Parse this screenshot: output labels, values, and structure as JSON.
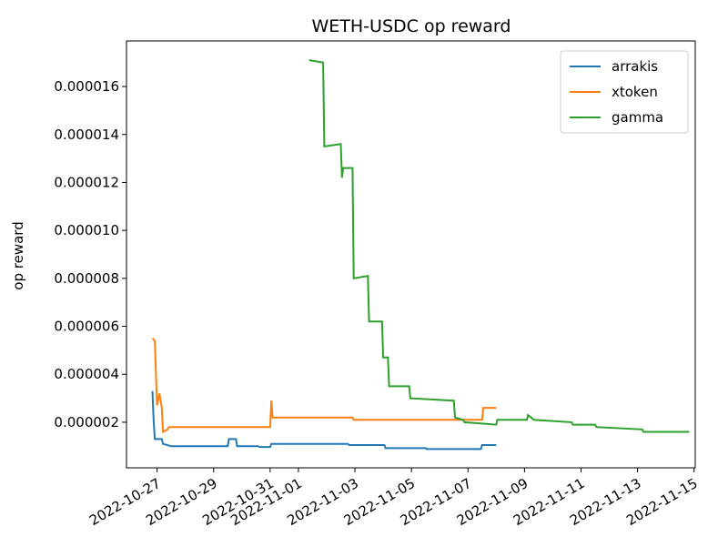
{
  "chart_data": {
    "type": "line",
    "title": "WETH-USDC op reward",
    "xlabel": "",
    "ylabel": "op reward",
    "x_range": [
      "2022-10-25T22:00",
      "2022-11-15T01:00"
    ],
    "ylim": [
      1e-07,
      1.79e-05
    ],
    "x_ticks": [
      "2022-10-27",
      "2022-10-29",
      "2022-10-31",
      "2022-11-01",
      "2022-11-03",
      "2022-11-05",
      "2022-11-07",
      "2022-11-09",
      "2022-11-11",
      "2022-11-13",
      "2022-11-15"
    ],
    "y_ticks": [
      2e-06,
      4e-06,
      6e-06,
      8e-06,
      1e-05,
      1.2e-05,
      1.4e-05,
      1.6e-05
    ],
    "y_tick_labels": [
      "0.000002",
      "0.000004",
      "0.000006",
      "0.000008",
      "0.000010",
      "0.000012",
      "0.000014",
      "0.000016"
    ],
    "legend_position": "upper-right",
    "grid": false,
    "series": [
      {
        "name": "arrakis",
        "color": "#1f77b4",
        "points": [
          [
            "2022-10-26T20:00",
            3.3e-06
          ],
          [
            "2022-10-26T21:00",
            2.1e-06
          ],
          [
            "2022-10-26T22:00",
            1.3e-06
          ],
          [
            "2022-10-27T04:00",
            1.3e-06
          ],
          [
            "2022-10-27T05:00",
            1.1e-06
          ],
          [
            "2022-10-27T12:00",
            1e-06
          ],
          [
            "2022-10-29T12:00",
            1e-06
          ],
          [
            "2022-10-29T13:00",
            1.3e-06
          ],
          [
            "2022-10-29T19:00",
            1.3e-06
          ],
          [
            "2022-10-29T20:00",
            1e-06
          ],
          [
            "2022-10-30T14:00",
            1e-06
          ],
          [
            "2022-10-30T15:00",
            9.7e-07
          ],
          [
            "2022-10-31T00:00",
            9.7e-07
          ],
          [
            "2022-10-31T01:00",
            1.1e-06
          ],
          [
            "2022-11-02T18:00",
            1.1e-06
          ],
          [
            "2022-11-02T19:00",
            1.05e-06
          ],
          [
            "2022-11-04T01:00",
            1.05e-06
          ],
          [
            "2022-11-04T02:00",
            9.2e-07
          ],
          [
            "2022-11-05T12:00",
            9.2e-07
          ],
          [
            "2022-11-05T13:00",
            8.8e-07
          ],
          [
            "2022-11-07T11:00",
            8.8e-07
          ],
          [
            "2022-11-07T12:00",
            1.05e-06
          ],
          [
            "2022-11-08T00:00",
            1.05e-06
          ]
        ]
      },
      {
        "name": "xtoken",
        "color": "#ff7f0e",
        "points": [
          [
            "2022-10-26T20:00",
            5.5e-06
          ],
          [
            "2022-10-26T22:00",
            5.4e-06
          ],
          [
            "2022-10-27T00:00",
            2.7e-06
          ],
          [
            "2022-10-27T02:00",
            3.2e-06
          ],
          [
            "2022-10-27T04:00",
            2.6e-06
          ],
          [
            "2022-10-27T05:00",
            1.6e-06
          ],
          [
            "2022-10-27T09:00",
            1.7e-06
          ],
          [
            "2022-10-27T10:00",
            1.8e-06
          ],
          [
            "2022-10-31T00:00",
            1.8e-06
          ],
          [
            "2022-10-31T01:00",
            2.9e-06
          ],
          [
            "2022-10-31T02:00",
            2.2e-06
          ],
          [
            "2022-11-02T22:00",
            2.2e-06
          ],
          [
            "2022-11-02T23:00",
            2.1e-06
          ],
          [
            "2022-11-07T12:00",
            2.1e-06
          ],
          [
            "2022-11-07T13:00",
            2.6e-06
          ],
          [
            "2022-11-08T00:00",
            2.6e-06
          ]
        ]
      },
      {
        "name": "gamma",
        "color": "#2ca02c",
        "points": [
          [
            "2022-11-01T09:00",
            1.71e-05
          ],
          [
            "2022-11-01T21:00",
            1.7e-05
          ],
          [
            "2022-11-01T22:00",
            1.35e-05
          ],
          [
            "2022-11-02T12:00",
            1.36e-05
          ],
          [
            "2022-11-02T13:00",
            1.22e-05
          ],
          [
            "2022-11-02T14:00",
            1.26e-05
          ],
          [
            "2022-11-02T22:00",
            1.26e-05
          ],
          [
            "2022-11-02T23:00",
            8e-06
          ],
          [
            "2022-11-03T11:00",
            8.1e-06
          ],
          [
            "2022-11-03T12:00",
            6.2e-06
          ],
          [
            "2022-11-03T23:00",
            6.2e-06
          ],
          [
            "2022-11-04T00:00",
            4.7e-06
          ],
          [
            "2022-11-04T04:00",
            4.7e-06
          ],
          [
            "2022-11-04T05:00",
            3.5e-06
          ],
          [
            "2022-11-04T22:00",
            3.5e-06
          ],
          [
            "2022-11-04T23:00",
            3e-06
          ],
          [
            "2022-11-06T12:00",
            2.9e-06
          ],
          [
            "2022-11-06T13:00",
            2.2e-06
          ],
          [
            "2022-11-06T20:00",
            2.1e-06
          ],
          [
            "2022-11-06T21:00",
            2e-06
          ],
          [
            "2022-11-08T00:00",
            1.9e-06
          ],
          [
            "2022-11-08T01:00",
            2.1e-06
          ],
          [
            "2022-11-09T02:00",
            2.1e-06
          ],
          [
            "2022-11-09T03:00",
            2.3e-06
          ],
          [
            "2022-11-09T08:00",
            2.1e-06
          ],
          [
            "2022-11-10T16:00",
            2e-06
          ],
          [
            "2022-11-10T17:00",
            1.9e-06
          ],
          [
            "2022-11-11T12:00",
            1.9e-06
          ],
          [
            "2022-11-11T13:00",
            1.8e-06
          ],
          [
            "2022-11-13T04:00",
            1.7e-06
          ],
          [
            "2022-11-13T05:00",
            1.6e-06
          ],
          [
            "2022-11-14T20:00",
            1.6e-06
          ]
        ]
      }
    ]
  }
}
